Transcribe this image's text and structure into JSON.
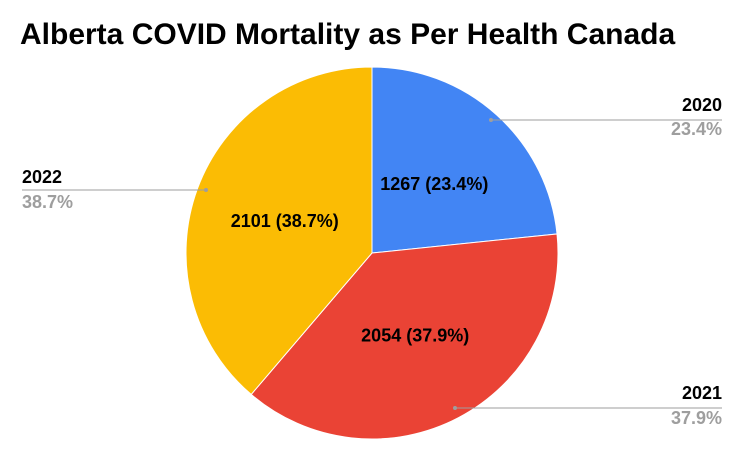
{
  "chart_data": {
    "type": "pie",
    "title": "Alberta COVID Mortality as Per Health Canada",
    "slices": [
      {
        "label": "2020",
        "value": 1267,
        "percent_label": "23.4%",
        "inside_label": "1267 (23.4%)",
        "color": "#4285f4"
      },
      {
        "label": "2021",
        "value": 2054,
        "percent_label": "37.9%",
        "inside_label": "2054 (37.9%)",
        "color": "#ea4335"
      },
      {
        "label": "2022",
        "value": 2101,
        "percent_label": "38.7%",
        "inside_label": "2101 (38.7%)",
        "color": "#fbbc04"
      }
    ],
    "legend_placement": "callouts",
    "start_angle_deg": 0,
    "direction": "clockwise"
  }
}
